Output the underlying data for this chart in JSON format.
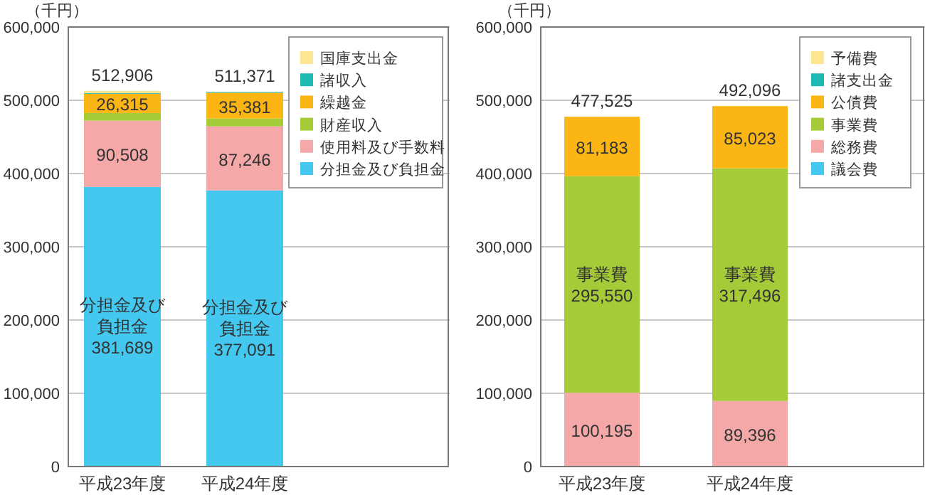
{
  "chart_data": [
    {
      "type": "bar",
      "stacked": true,
      "ylabel": "（千円）",
      "categories": [
        "平成23年度",
        "平成24年度"
      ],
      "ylim": [
        0,
        600000
      ],
      "yticks": [
        {
          "value": 0,
          "label": "0"
        },
        {
          "value": 100000,
          "label": "100,000"
        },
        {
          "value": 200000,
          "label": "200,000"
        },
        {
          "value": 300000,
          "label": "300,000"
        },
        {
          "value": 400000,
          "label": "400,000"
        },
        {
          "value": 500000,
          "label": "500,000"
        },
        {
          "value": 600000,
          "label": "600,000"
        }
      ],
      "grid": "y",
      "legend": "top right",
      "series": [
        {
          "name": "分担金及び負担金",
          "color": "#44c8f0",
          "values": [
            381689,
            377091
          ],
          "value_labels": [
            "分担金及び負担金 381,689",
            "分担金及び負担金 377,091"
          ]
        },
        {
          "name": "使用料及び手数料",
          "color": "#f4a9a8",
          "values": [
            90508,
            87246
          ],
          "value_labels": [
            "90,508",
            "87,246"
          ]
        },
        {
          "name": "財産収入",
          "color": "#a5cc38",
          "values": [
            10394,
            10653
          ]
        },
        {
          "name": "繰越金",
          "color": "#fbb615",
          "values": [
            26315,
            35381
          ],
          "value_labels": [
            "26,315",
            "35,381"
          ]
        },
        {
          "name": "諸収入",
          "color": "#1fb9b3",
          "values": [
            1000,
            1000
          ]
        },
        {
          "name": "国庫支出金",
          "color": "#fde68f",
          "values": [
            3000,
            0
          ]
        }
      ],
      "totals": [
        "512,906",
        "511,371"
      ]
    },
    {
      "type": "bar",
      "stacked": true,
      "ylabel": "（千円）",
      "categories": [
        "平成23年度",
        "平成24年度"
      ],
      "ylim": [
        0,
        600000
      ],
      "yticks": [
        {
          "value": 0,
          "label": "0"
        },
        {
          "value": 100000,
          "label": "100,000"
        },
        {
          "value": 200000,
          "label": "200,000"
        },
        {
          "value": 300000,
          "label": "300,000"
        },
        {
          "value": 400000,
          "label": "400,000"
        },
        {
          "value": 500000,
          "label": "500,000"
        },
        {
          "value": 600000,
          "label": "600,000"
        }
      ],
      "grid": "y",
      "legend": "top right",
      "series": [
        {
          "name": "議会費",
          "color": "#44c8f0",
          "values": [
            597,
            181
          ]
        },
        {
          "name": "総務費",
          "color": "#f4a9a8",
          "values": [
            100195,
            89396
          ],
          "value_labels": [
            "100,195",
            "89,396"
          ]
        },
        {
          "name": "事業費",
          "color": "#a5cc38",
          "values": [
            295550,
            317496
          ],
          "value_labels": [
            "事業費 295,550",
            "事業費 317,496"
          ]
        },
        {
          "name": "公債費",
          "color": "#fbb615",
          "values": [
            81183,
            85023
          ],
          "value_labels": [
            "81,183",
            "85,023"
          ]
        },
        {
          "name": "諸支出金",
          "color": "#1fb9b3",
          "values": [
            0,
            0
          ]
        },
        {
          "name": "予備費",
          "color": "#fde68f",
          "values": [
            0,
            0
          ]
        }
      ],
      "totals": [
        "477,525",
        "492,096"
      ]
    }
  ]
}
